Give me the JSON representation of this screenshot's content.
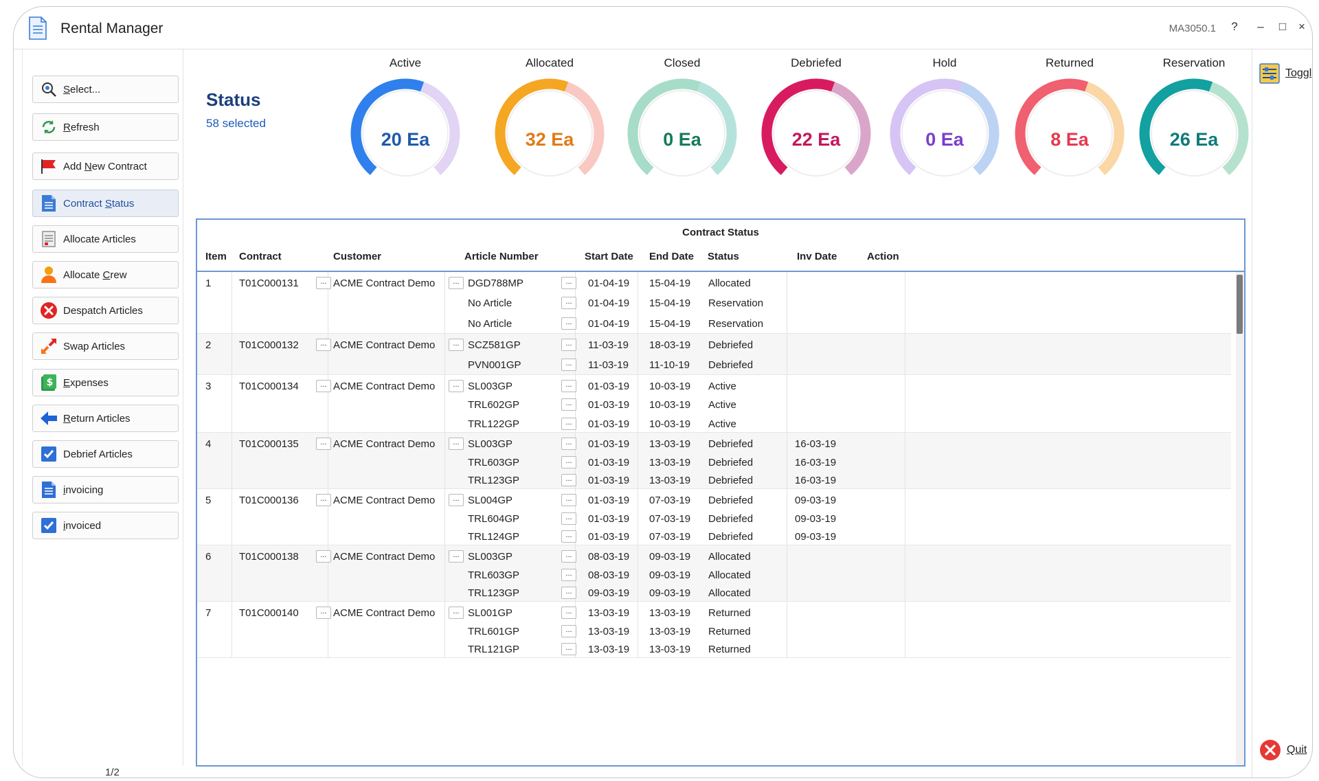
{
  "window": {
    "title": "Rental Manager",
    "code": "MA3050.1",
    "help": "?",
    "minimize": "–",
    "maximize": "□",
    "close": "×"
  },
  "sidebar": {
    "items": [
      {
        "key": "select",
        "pre": "",
        "ul": "S",
        "post": "elect...",
        "icon": "magnifier-icon"
      },
      {
        "key": "refresh",
        "pre": "",
        "ul": "R",
        "post": "efresh",
        "icon": "refresh-icon"
      },
      {
        "key": "add-new-contract",
        "pre": "Add ",
        "ul": "N",
        "post": "ew Contract",
        "icon": "flag-icon"
      },
      {
        "key": "contract-status",
        "pre": "Contract ",
        "ul": "S",
        "post": "tatus",
        "icon": "document-icon"
      },
      {
        "key": "allocate-articles",
        "pre": "Allocate Articles",
        "ul": "",
        "post": "",
        "icon": "articles-icon"
      },
      {
        "key": "allocate-crew",
        "pre": "Allocate ",
        "ul": "C",
        "post": "rew",
        "icon": "person-icon"
      },
      {
        "key": "despatch-articles",
        "pre": "Despatch Articles",
        "ul": "",
        "post": "",
        "icon": "cancel-icon"
      },
      {
        "key": "swap-articles",
        "pre": "Swap Articles",
        "ul": "",
        "post": "",
        "icon": "swap-icon"
      },
      {
        "key": "expenses",
        "pre": "",
        "ul": "E",
        "post": "xpenses",
        "icon": "money-icon"
      },
      {
        "key": "return-articles",
        "pre": "",
        "ul": "R",
        "post": "eturn Articles",
        "icon": "arrow-left-icon"
      },
      {
        "key": "debrief-articles",
        "pre": "Debrief Articles",
        "ul": "",
        "post": "",
        "icon": "check-icon"
      },
      {
        "key": "invoicing",
        "pre": "",
        "ul": "i",
        "post": "nvoicing",
        "icon": "document-lines-icon"
      },
      {
        "key": "invoiced",
        "pre": "",
        "ul": "i",
        "post": "nvoiced",
        "icon": "check-icon"
      }
    ],
    "page": "1/2"
  },
  "status": {
    "title": "Status",
    "subtitle": "58 selected"
  },
  "gauges": [
    {
      "label": "Active",
      "value": "20 Ea",
      "color": "#2f80ed",
      "track": "#e2d4f5",
      "text_color": "#1f5aa8"
    },
    {
      "label": "Allocated",
      "value": "32 Ea",
      "color": "#f5a623",
      "track": "#f9c8c2",
      "text_color": "#e07b17"
    },
    {
      "label": "Closed",
      "value": "0 Ea",
      "color": "#a7dcc9",
      "track": "#b5e3dc",
      "text_color": "#167a5b"
    },
    {
      "label": "Debriefed",
      "value": "22 Ea",
      "color": "#d81b60",
      "track": "#d9a6c9",
      "text_color": "#c2185b"
    },
    {
      "label": "Hold",
      "value": "0 Ea",
      "color": "#d6c4f5",
      "track": "#bcd3f3",
      "text_color": "#7b3fc9"
    },
    {
      "label": "Returned",
      "value": "8 Ea",
      "color": "#f06070",
      "track": "#fbd7a6",
      "text_color": "#e53950"
    },
    {
      "label": "Reservation",
      "value": "26 Ea",
      "color": "#12a0a0",
      "track": "#b5e2cf",
      "text_color": "#0f7a7a"
    }
  ],
  "right_panel": {
    "toggle_label": "Toggl",
    "quit_label": "Quit"
  },
  "table": {
    "caption": "Contract Status",
    "columns": [
      "Item",
      "Contract",
      "Customer",
      "Article Number",
      "Start Date",
      "End Date",
      "Status",
      "Inv Date",
      "Action"
    ],
    "ellipsis": "...",
    "groups": [
      {
        "item": "1",
        "contract": "T01C000131",
        "customer": "ACME Contract Demo",
        "rows": [
          {
            "article": "DGD788MP",
            "start": "01-04-19",
            "end": "15-04-19",
            "status": "Allocated",
            "inv": ""
          },
          {
            "article": "No Article",
            "start": "01-04-19",
            "end": "15-04-19",
            "status": "Reservation",
            "inv": ""
          },
          {
            "article": "No Article",
            "start": "01-04-19",
            "end": "15-04-19",
            "status": "Reservation",
            "inv": ""
          }
        ]
      },
      {
        "item": "2",
        "contract": "T01C000132",
        "customer": "ACME Contract Demo",
        "rows": [
          {
            "article": "SCZ581GP",
            "start": "11-03-19",
            "end": "18-03-19",
            "status": "Debriefed",
            "inv": ""
          },
          {
            "article": "PVN001GP",
            "start": "11-03-19",
            "end": "11-10-19",
            "status": "Debriefed",
            "inv": ""
          }
        ]
      },
      {
        "item": "3",
        "contract": "T01C000134",
        "customer": "ACME Contract Demo",
        "rows": [
          {
            "article": "SL003GP",
            "start": "01-03-19",
            "end": "10-03-19",
            "status": "Active",
            "inv": ""
          },
          {
            "article": "TRL602GP",
            "start": "01-03-19",
            "end": "10-03-19",
            "status": "Active",
            "inv": ""
          },
          {
            "article": "TRL122GP",
            "start": "01-03-19",
            "end": "10-03-19",
            "status": "Active",
            "inv": ""
          }
        ]
      },
      {
        "item": "4",
        "contract": "T01C000135",
        "customer": "ACME Contract Demo",
        "rows": [
          {
            "article": "SL003GP",
            "start": "01-03-19",
            "end": "13-03-19",
            "status": "Debriefed",
            "inv": "16-03-19"
          },
          {
            "article": "TRL603GP",
            "start": "01-03-19",
            "end": "13-03-19",
            "status": "Debriefed",
            "inv": "16-03-19"
          },
          {
            "article": "TRL123GP",
            "start": "01-03-19",
            "end": "13-03-19",
            "status": "Debriefed",
            "inv": "16-03-19"
          }
        ]
      },
      {
        "item": "5",
        "contract": "T01C000136",
        "customer": "ACME Contract Demo",
        "rows": [
          {
            "article": "SL004GP",
            "start": "01-03-19",
            "end": "07-03-19",
            "status": "Debriefed",
            "inv": "09-03-19"
          },
          {
            "article": "TRL604GP",
            "start": "01-03-19",
            "end": "07-03-19",
            "status": "Debriefed",
            "inv": "09-03-19"
          },
          {
            "article": "TRL124GP",
            "start": "01-03-19",
            "end": "07-03-19",
            "status": "Debriefed",
            "inv": "09-03-19"
          }
        ]
      },
      {
        "item": "6",
        "contract": "T01C000138",
        "customer": "ACME Contract Demo",
        "rows": [
          {
            "article": "SL003GP",
            "start": "08-03-19",
            "end": "09-03-19",
            "status": "Allocated",
            "inv": ""
          },
          {
            "article": "TRL603GP",
            "start": "08-03-19",
            "end": "09-03-19",
            "status": "Allocated",
            "inv": ""
          },
          {
            "article": "TRL123GP",
            "start": "09-03-19",
            "end": "09-03-19",
            "status": "Allocated",
            "inv": ""
          }
        ]
      },
      {
        "item": "7",
        "contract": "T01C000140",
        "customer": "ACME Contract Demo",
        "rows": [
          {
            "article": "SL001GP",
            "start": "13-03-19",
            "end": "13-03-19",
            "status": "Returned",
            "inv": ""
          },
          {
            "article": "TRL601GP",
            "start": "13-03-19",
            "end": "13-03-19",
            "status": "Returned",
            "inv": ""
          },
          {
            "article": "TRL121GP",
            "start": "13-03-19",
            "end": "13-03-19",
            "status": "Returned",
            "inv": ""
          }
        ]
      }
    ]
  }
}
